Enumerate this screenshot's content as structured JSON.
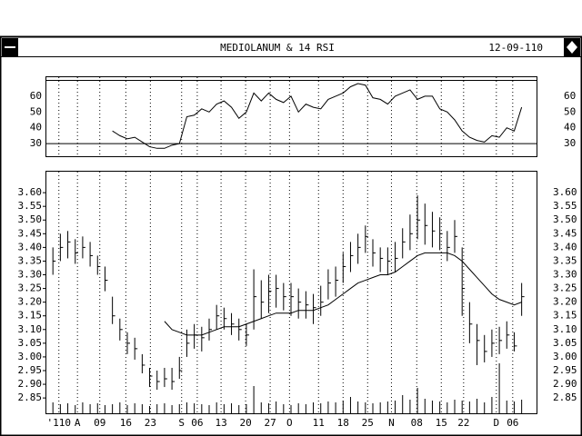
{
  "chart_data": {
    "type": "ohlc",
    "title": "MEDIOLANUM & 14 RSI",
    "subtitle": "12-09-110",
    "xlim": [
      -1,
      65
    ],
    "xticks": [
      {
        "value": 0.8,
        "label": "'110"
      },
      {
        "value": 3.3,
        "label": "A"
      },
      {
        "value": 6.3,
        "label": "09"
      },
      {
        "value": 9.8,
        "label": "16"
      },
      {
        "value": 13.1,
        "label": "23"
      },
      {
        "value": 17.3,
        "label": "S"
      },
      {
        "value": 19.4,
        "label": "06"
      },
      {
        "value": 22.6,
        "label": "13"
      },
      {
        "value": 25.9,
        "label": "20"
      },
      {
        "value": 29.2,
        "label": "27"
      },
      {
        "value": 31.8,
        "label": "O"
      },
      {
        "value": 35.7,
        "label": "11"
      },
      {
        "value": 39,
        "label": "18"
      },
      {
        "value": 42.3,
        "label": "25"
      },
      {
        "value": 45.5,
        "label": "N"
      },
      {
        "value": 48.9,
        "label": "08"
      },
      {
        "value": 52.2,
        "label": "15"
      },
      {
        "value": 55.2,
        "label": "22"
      },
      {
        "value": 59.6,
        "label": "D"
      },
      {
        "value": 61.8,
        "label": "06"
      }
    ],
    "ylim": [
      2.794,
      3.68
    ],
    "yticks": [
      {
        "value": 3.6,
        "label": "3.60"
      },
      3.55,
      {
        "value": 3.5,
        "label": "3.50"
      },
      3.45,
      {
        "value": 3.4,
        "label": "3.40"
      },
      3.35,
      {
        "value": 3.3,
        "label": "3.30"
      },
      3.25,
      {
        "value": 3.2,
        "label": "3.20"
      },
      3.15,
      {
        "value": 3.1,
        "label": "3.10"
      },
      3.05,
      {
        "value": 3.0,
        "label": "3.00"
      },
      2.95,
      {
        "value": 2.9,
        "label": "2.90"
      },
      2.85
    ],
    "grid": true,
    "color": "#000000",
    "high": [
      3.4,
      3.45,
      3.46,
      3.43,
      3.44,
      3.42,
      3.37,
      3.33,
      3.22,
      3.14,
      3.09,
      3.07,
      3.01,
      2.96,
      2.95,
      2.96,
      2.96,
      3.0,
      3.1,
      3.12,
      3.11,
      3.14,
      3.19,
      3.18,
      3.16,
      3.14,
      3.12,
      3.32,
      3.28,
      3.3,
      3.3,
      3.27,
      3.27,
      3.25,
      3.24,
      3.23,
      3.26,
      3.32,
      3.33,
      3.38,
      3.42,
      3.45,
      3.48,
      3.43,
      3.4,
      3.4,
      3.42,
      3.47,
      3.52,
      3.59,
      3.56,
      3.53,
      3.51,
      3.46,
      3.5,
      3.4,
      3.2,
      3.12,
      3.08,
      3.1,
      3.11,
      3.13,
      3.09,
      3.27
    ],
    "low": [
      3.3,
      3.35,
      3.36,
      3.34,
      3.36,
      3.33,
      3.3,
      3.24,
      3.12,
      3.06,
      3.01,
      2.99,
      2.94,
      2.89,
      2.88,
      2.89,
      2.88,
      2.92,
      3.0,
      3.03,
      3.02,
      3.06,
      3.1,
      3.1,
      3.08,
      3.06,
      3.04,
      3.1,
      3.14,
      3.16,
      3.18,
      3.17,
      3.15,
      3.14,
      3.14,
      3.12,
      3.15,
      3.21,
      3.22,
      3.27,
      3.31,
      3.34,
      3.38,
      3.33,
      3.31,
      3.3,
      3.31,
      3.36,
      3.39,
      3.43,
      3.41,
      3.4,
      3.39,
      3.35,
      3.38,
      3.15,
      3.05,
      2.97,
      2.98,
      3.0,
      3.01,
      3.03,
      3.02,
      3.15
    ],
    "close": [
      3.35,
      3.4,
      3.42,
      3.38,
      3.4,
      3.37,
      3.33,
      3.28,
      3.15,
      3.1,
      3.05,
      3.03,
      2.97,
      2.93,
      2.91,
      2.92,
      2.91,
      2.95,
      3.05,
      3.08,
      3.07,
      3.1,
      3.15,
      3.14,
      3.12,
      3.1,
      3.08,
      3.22,
      3.2,
      3.24,
      3.25,
      3.22,
      3.22,
      3.2,
      3.19,
      3.18,
      3.2,
      3.27,
      3.28,
      3.33,
      3.37,
      3.4,
      3.44,
      3.38,
      3.36,
      3.35,
      3.36,
      3.42,
      3.45,
      3.5,
      3.48,
      3.46,
      3.45,
      3.4,
      3.44,
      3.25,
      3.12,
      3.06,
      3.02,
      3.05,
      3.06,
      3.08,
      3.04,
      3.22
    ],
    "ma": [
      null,
      null,
      null,
      null,
      null,
      null,
      null,
      null,
      null,
      null,
      null,
      null,
      null,
      null,
      null,
      3.13,
      3.1,
      3.09,
      3.08,
      3.08,
      3.08,
      3.09,
      3.1,
      3.11,
      3.11,
      3.11,
      3.12,
      3.13,
      3.14,
      3.15,
      3.16,
      3.16,
      3.16,
      3.17,
      3.17,
      3.17,
      3.18,
      3.19,
      3.21,
      3.23,
      3.25,
      3.27,
      3.28,
      3.29,
      3.3,
      3.3,
      3.31,
      3.33,
      3.35,
      3.37,
      3.38,
      3.38,
      3.38,
      3.38,
      3.37,
      3.35,
      3.32,
      3.29,
      3.26,
      3.23,
      3.21,
      3.2,
      3.19,
      3.2
    ],
    "volume": [
      12,
      10,
      11,
      9,
      12,
      10,
      11,
      9,
      10,
      12,
      9,
      11,
      10,
      8,
      10,
      11,
      9,
      10,
      12,
      11,
      10,
      9,
      12,
      10,
      11,
      9,
      10,
      30,
      12,
      11,
      13,
      10,
      9,
      11,
      10,
      12,
      11,
      13,
      12,
      14,
      18,
      13,
      12,
      11,
      12,
      13,
      14,
      20,
      15,
      28,
      16,
      14,
      13,
      12,
      15,
      14,
      13,
      16,
      12,
      18,
      55,
      14,
      13,
      15
    ],
    "rsi": {
      "ylim": [
        22,
        72.6
      ],
      "yticks": [
        60,
        50,
        40,
        30
      ],
      "levels": [
        70,
        30
      ],
      "values": [
        null,
        null,
        null,
        null,
        null,
        null,
        null,
        null,
        38,
        35,
        33,
        34,
        31,
        28,
        27,
        27,
        29,
        30,
        47,
        48,
        52,
        50,
        55,
        57,
        53,
        46,
        50,
        62,
        57,
        62,
        58,
        56,
        60,
        50,
        55,
        53,
        52,
        58,
        60,
        62,
        66,
        68,
        67,
        59,
        58,
        55,
        60,
        62,
        64,
        58,
        60,
        60,
        52,
        50,
        45,
        38,
        34,
        32,
        31,
        35,
        34,
        40,
        38,
        53
      ]
    }
  }
}
